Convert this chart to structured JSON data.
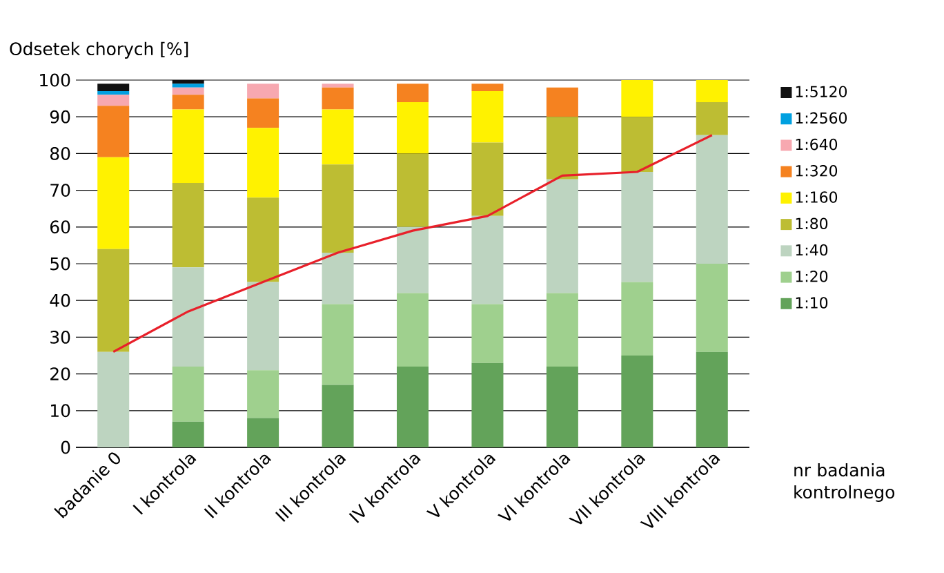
{
  "chart_data": {
    "type": "bar",
    "ylabel": "Odsetek chorych [%]",
    "xlabel": "nr badania kontrolnego",
    "categories": [
      "badanie 0",
      "I kontrola",
      "II kontrola",
      "III kontrola",
      "IV  kontrola",
      "V kontrola",
      "VI kontrola",
      "VII kontrola",
      "VIII kontrola"
    ],
    "stacked": true,
    "ylim": [
      0,
      100
    ],
    "yticks": [
      0,
      10,
      20,
      30,
      40,
      50,
      60,
      70,
      80,
      90,
      100
    ],
    "grid": "y",
    "legend": "right",
    "series": [
      {
        "name": "1:10",
        "color": "#63a35a",
        "values": [
          0,
          7,
          8,
          17,
          22,
          23,
          22,
          25,
          26
        ]
      },
      {
        "name": "1:20",
        "color": "#9fd08e",
        "values": [
          0,
          15,
          13,
          22,
          20,
          16,
          20,
          20,
          24
        ]
      },
      {
        "name": "1:40",
        "color": "#bdd4c0",
        "values": [
          26,
          27,
          24,
          14,
          18,
          24,
          31,
          30,
          35
        ]
      },
      {
        "name": "1:80",
        "color": "#bdbd33",
        "values": [
          28,
          23,
          23,
          24,
          20,
          20,
          17,
          15,
          9
        ]
      },
      {
        "name": "1:160",
        "color": "#fff200",
        "values": [
          25,
          20,
          19,
          15,
          14,
          14,
          0,
          10,
          6
        ]
      },
      {
        "name": "1:320",
        "color": "#f58220",
        "values": [
          14,
          4,
          8,
          6,
          5,
          2,
          8,
          0,
          0
        ]
      },
      {
        "name": "1:640",
        "color": "#f7a8b0",
        "values": [
          3,
          2,
          4,
          1,
          0,
          0,
          0,
          0,
          0
        ]
      },
      {
        "name": "1:2560",
        "color": "#00a0e0",
        "values": [
          1,
          1,
          0,
          0,
          0,
          0,
          0,
          0,
          0
        ]
      },
      {
        "name": "1:5120",
        "color": "#111111",
        "values": [
          2,
          1,
          0,
          0,
          0,
          0,
          0,
          0,
          0
        ]
      },
      {
        "type": "line",
        "color": "#e8202a",
        "values": [
          26,
          37,
          45,
          53,
          59,
          63,
          74,
          75,
          85
        ]
      }
    ]
  }
}
